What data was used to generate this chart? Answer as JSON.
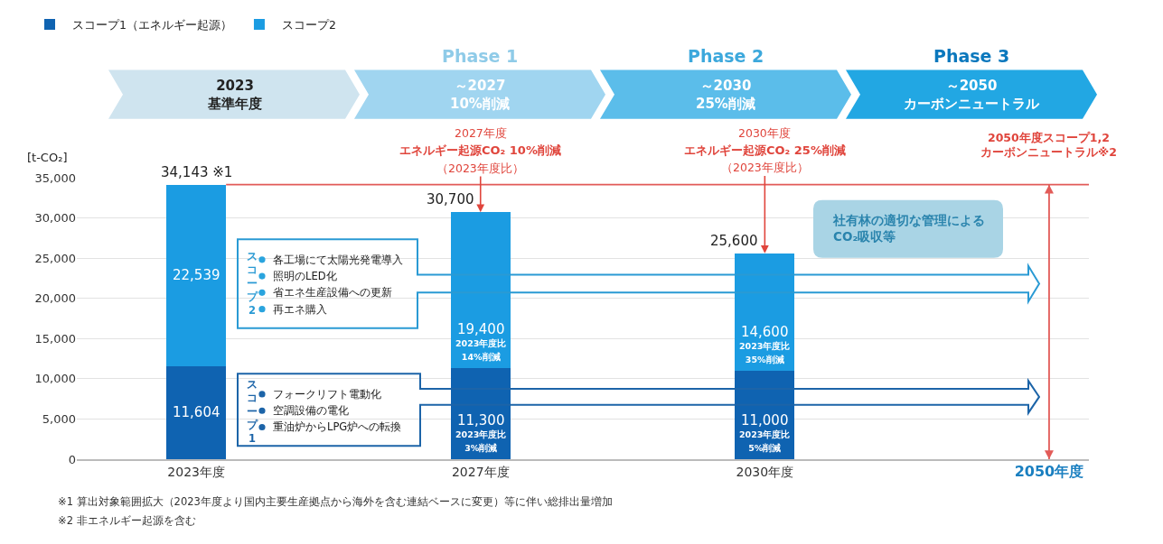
{
  "chart_data": {
    "type": "bar",
    "stacked": true,
    "categories": [
      "2023年度",
      "2027年度",
      "2030年度",
      "2050年度"
    ],
    "series": [
      {
        "name": "スコープ1（エネルギー起源）",
        "color": "#0f63b1",
        "values": [
          11604,
          11300,
          11000,
          null
        ],
        "value_labels": [
          "11,604",
          "11,300\n2023年度比\n3%削減",
          "11,000\n2023年度比\n5%削減",
          null
        ]
      },
      {
        "name": "スコープ2",
        "color": "#1b9ce2",
        "values": [
          22539,
          19400,
          14600,
          null
        ],
        "value_labels": [
          "22,539",
          "19,400\n2023年度比\n14%削減",
          "14,600\n2023年度比\n35%削減",
          null
        ]
      }
    ],
    "totals": [
      "34,143 ※1",
      "30,700",
      "25,600",
      null
    ],
    "ylabel": "[t-CO₂]",
    "ylim": [
      0,
      35000
    ],
    "yticks": [
      0,
      {
        "value": 5000,
        "label": "5,000"
      },
      {
        "value": 10000,
        "label": "10,000"
      },
      {
        "value": 15000,
        "label": "15,000"
      },
      {
        "value": 20000,
        "label": "20,000"
      },
      {
        "value": 25000,
        "label": "25,000"
      },
      {
        "value": 30000,
        "label": "30,000"
      },
      {
        "value": 35000,
        "label": "35,000"
      }
    ],
    "grid": "y",
    "legend": "top left",
    "ref_lines": [
      {
        "axis": "y",
        "value": 34143,
        "color": "#e25b58"
      },
      {
        "axis": "x",
        "value": "2050年度",
        "color": "#e25b58"
      }
    ],
    "annotations": [
      "Phase 1",
      "Phase 2",
      "Phase 3",
      "2023\n基準年度",
      "～2027\n10%削減",
      "～2030\n25%削減",
      "～2050\nカーボンニュートラル",
      "2027年度",
      "エネルギー起源CO₂ 10%削減",
      {
        "text": "（2023年度比）",
        "x": "2027年度",
        "y": 30700
      },
      "2030年度",
      "エネルギー起源CO₂ 25%削減",
      {
        "text": "（2023年度比）",
        "x": "2030年度",
        "y": 25600
      },
      "2050年度スコープ1,2\nカーボンニュートラル※2",
      "スコープ2",
      "各工場にて太陽光発電導入",
      "照明のLED化",
      "省エネ生産設備への更新",
      "再エネ購入",
      "スコープ1",
      "フォークリフト電動化",
      "空調設備の電化",
      "重油炉からLPG炉への転換",
      "社有林の適切な管理による\nCO₂吸収等",
      "※1 算出対象範囲拡大（2023年度より国内主要生産拠点から海外を含む連結ベースに変更）等に伴い総排出量増加",
      "※2 非エネルギー起源を含む"
    ]
  }
}
